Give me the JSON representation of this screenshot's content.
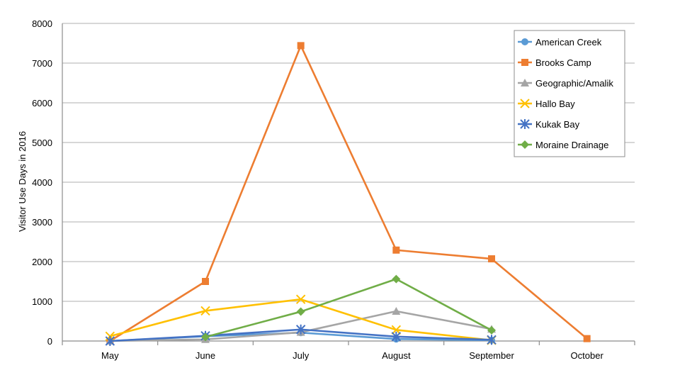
{
  "chart_data": {
    "type": "line",
    "categories": [
      "May",
      "June",
      "July",
      "August",
      "September",
      "October"
    ],
    "ylabel": "Visitor Use Days in 2016",
    "ylim": [
      0,
      8000
    ],
    "yticks": [
      0,
      1000,
      2000,
      3000,
      4000,
      5000,
      6000,
      7000,
      8000
    ],
    "grid": true,
    "legend_position": "top-right",
    "series": [
      {
        "name": "American Creek",
        "color": "#5B9BD5",
        "marker": "circle",
        "values": [
          0,
          120,
          210,
          50,
          20,
          null
        ]
      },
      {
        "name": "Brooks Camp",
        "color": "#ED7D31",
        "marker": "square",
        "values": [
          0,
          1500,
          7440,
          2290,
          2070,
          60
        ]
      },
      {
        "name": "Geographic/Amalik",
        "color": "#A5A5A5",
        "marker": "triangle",
        "values": [
          0,
          40,
          220,
          750,
          300,
          null
        ]
      },
      {
        "name": "Hallo Bay",
        "color": "#FFC000",
        "marker": "x",
        "values": [
          120,
          760,
          1050,
          280,
          20,
          null
        ]
      },
      {
        "name": "Kukak Bay",
        "color": "#4472C4",
        "marker": "star",
        "values": [
          0,
          130,
          290,
          110,
          30,
          null
        ]
      },
      {
        "name": "Moraine Drainage",
        "color": "#70AD47",
        "marker": "diamond",
        "values": [
          null,
          100,
          740,
          1560,
          270,
          null
        ]
      }
    ]
  }
}
